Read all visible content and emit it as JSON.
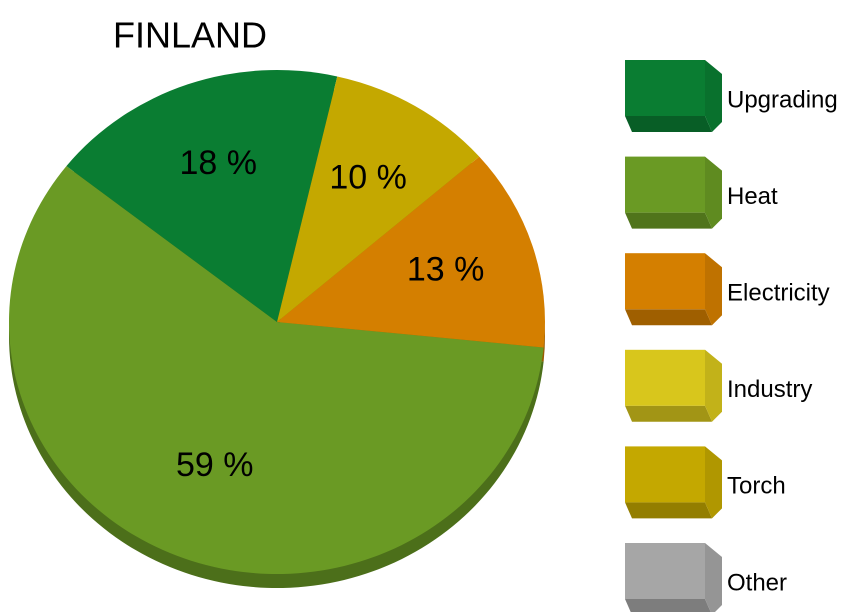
{
  "chart_data": {
    "type": "pie",
    "title": "FINLAND",
    "categories": [
      "Upgrading",
      "Heat",
      "Electricity",
      "Industry",
      "Torch",
      "Other"
    ],
    "values": [
      18,
      59,
      13,
      0,
      10,
      0
    ],
    "value_labels": [
      "18 %",
      "59 %",
      "13 %",
      null,
      "10 %",
      null
    ],
    "colors": [
      "#0a7d32",
      "#6a9a24",
      "#d47f00",
      "#d8c61c",
      "#c4a800",
      "#a6a6a6"
    ],
    "legend": "right"
  }
}
